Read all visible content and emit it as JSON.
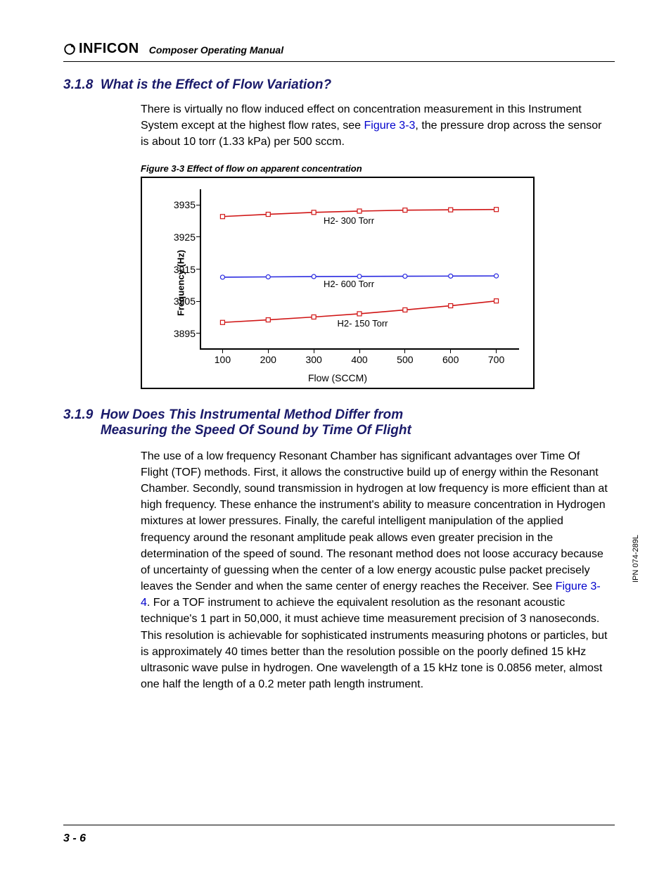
{
  "header": {
    "brand": "INFICON",
    "doc_title": "Composer Operating Manual"
  },
  "section1": {
    "number": "3.1.8",
    "title": "What is the Effect of Flow Variation?",
    "para_a": "There is virtually no flow induced effect on concentration measurement in this Instrument System except at the highest flow rates, see ",
    "xref": "Figure 3-3",
    "para_b": ", the pressure drop across the sensor is about 10 torr (1.33 kPa) per 500 sccm."
  },
  "figure": {
    "caption": "Figure 3-3  Effect of flow on apparent concentration",
    "y_axis_label": "Frequency (Hz)",
    "x_axis_label": "Flow (SCCM)",
    "ylim": [
      3890,
      3940
    ],
    "xlim": [
      50,
      750
    ],
    "y_ticks": [
      3895,
      3905,
      3915,
      3925,
      3935
    ],
    "x_ticks": [
      100,
      200,
      300,
      400,
      500,
      600,
      700
    ],
    "series": [
      {
        "name": "H2- 300 Torr",
        "color": "#d01515",
        "marker": "square",
        "marker_color": "#d01515",
        "points": [
          [
            100,
            3931.5
          ],
          [
            200,
            3932.2
          ],
          [
            300,
            3932.8
          ],
          [
            400,
            3933.2
          ],
          [
            500,
            3933.5
          ],
          [
            600,
            3933.6
          ],
          [
            700,
            3933.7
          ]
        ],
        "label_xy": [
          380,
          3930
        ]
      },
      {
        "name": "H2- 600 Torr",
        "color": "#2a2ae0",
        "marker": "circle",
        "marker_color": "#2a2ae0",
        "points": [
          [
            100,
            3912.6
          ],
          [
            200,
            3912.7
          ],
          [
            300,
            3912.8
          ],
          [
            400,
            3912.85
          ],
          [
            500,
            3912.9
          ],
          [
            600,
            3912.95
          ],
          [
            700,
            3913.0
          ]
        ],
        "label_xy": [
          380,
          3910.2
        ]
      },
      {
        "name": "H2- 150 Torr",
        "color": "#d01515",
        "marker": "square",
        "marker_color": "#d01515",
        "points": [
          [
            100,
            3898.5
          ],
          [
            200,
            3899.3
          ],
          [
            300,
            3900.2
          ],
          [
            400,
            3901.2
          ],
          [
            500,
            3902.4
          ],
          [
            600,
            3903.7
          ],
          [
            700,
            3905.2
          ]
        ],
        "label_xy": [
          410,
          3898
        ]
      }
    ],
    "line_width": 1.6,
    "marker_size": 6,
    "border_color": "#000000",
    "background": "#ffffff"
  },
  "section2": {
    "number": "3.1.9",
    "title_line1": "How Does This Instrumental Method Differ from",
    "title_line2": "Measuring the Speed Of Sound by Time Of Flight",
    "para_a": "The use of a low frequency Resonant Chamber has significant advantages over Time Of Flight (TOF) methods. First, it allows the constructive build up of energy within the Resonant Chamber. Secondly, sound transmission in hydrogen at low frequency is more efficient than at high frequency. These enhance the instrument's ability to measure concentration in Hydrogen mixtures at lower pressures. Finally, the careful intelligent manipulation of the applied frequency around the resonant amplitude peak allows even greater precision in the determination of the speed of sound. The resonant method does not loose accuracy because of uncertainty of guessing when the center of a low energy acoustic pulse packet precisely leaves the Sender and when the same center of energy reaches the Receiver. See ",
    "xref": "Figure 3-4",
    "para_b": ". For a TOF instrument to achieve the equivalent resolution as the resonant acoustic technique's 1 part in 50,000, it must achieve time measurement precision of 3 nanoseconds. This resolution is achievable for sophisticated instruments measuring photons or particles, but is approximately 40 times better than the resolution possible on the poorly defined 15 kHz ultrasonic wave pulse in hydrogen. One wavelength of a 15 kHz tone is 0.0856 meter, almost one half the length of a 0.2 meter path length instrument."
  },
  "footer": {
    "page": "3 - 6",
    "ipn": "IPN 074-289L"
  }
}
